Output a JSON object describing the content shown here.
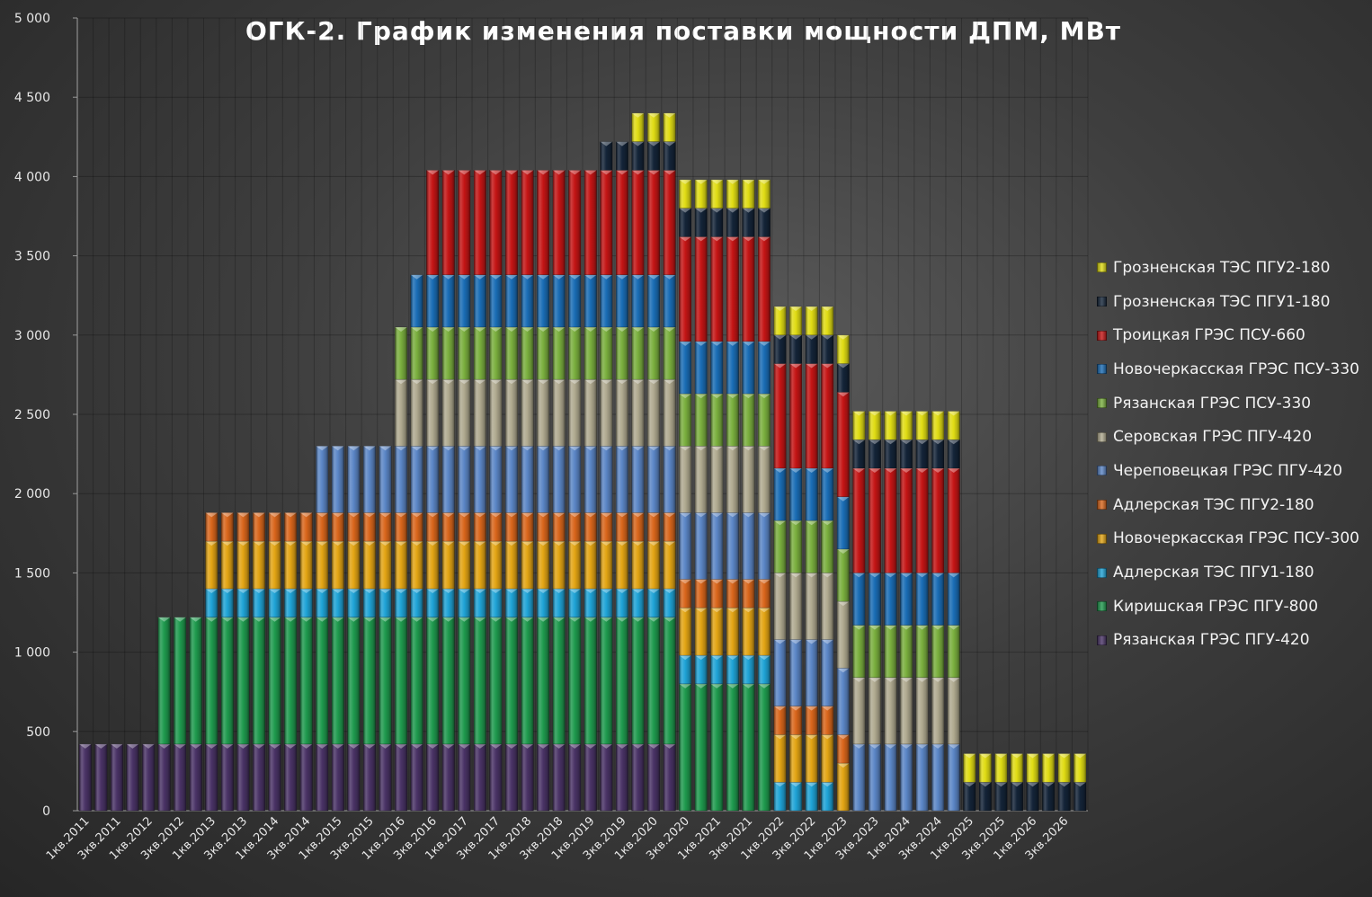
{
  "chart_data": {
    "type": "bar",
    "stacked": true,
    "title": "ОГК-2. График изменения поставки мощности ДПМ, МВт",
    "xlabel": "",
    "ylabel": "",
    "ylim": [
      0,
      5000
    ],
    "yticks": [
      "0",
      "500",
      "1 000",
      "1 500",
      "2 000",
      "2 500",
      "3 000",
      "3 500",
      "4 000",
      "4 500",
      "5 000"
    ],
    "grid": true,
    "legend_position": "right",
    "categories": [
      "1кв.2011",
      "2кв.2011",
      "3кв.2011",
      "4кв.2011",
      "1кв.2012",
      "2кв.2012",
      "3кв.2012",
      "4кв.2012",
      "1кв.2013",
      "2кв.2013",
      "3кв.2013",
      "4кв.2013",
      "1кв.2014",
      "2кв.2014",
      "3кв.2014",
      "4кв.2014",
      "1кв.2015",
      "2кв.2015",
      "3кв.2015",
      "4кв.2015",
      "1кв.2016",
      "2кв.2016",
      "3кв.2016",
      "4кв.2016",
      "1кв.2017",
      "2кв.2017",
      "3кв.2017",
      "4кв.2017",
      "1кв.2018",
      "2кв.2018",
      "3кв.2018",
      "4кв.2018",
      "1кв.2019",
      "2кв.2019",
      "3кв.2019",
      "4кв.2019",
      "1кв.2020",
      "2кв.2020",
      "3кв.2020",
      "4кв.2020",
      "1кв.2021",
      "2кв.2021",
      "3кв.2021",
      "4кв.2021",
      "1кв.2022",
      "2кв.2022",
      "3кв.2022",
      "4кв.2022",
      "1кв.2023",
      "2кв.2023",
      "3кв.2023",
      "4кв.2023",
      "1кв.2024",
      "2кв.2024",
      "3кв.2024",
      "4кв.2024",
      "1кв.2025",
      "2кв.2025",
      "3кв.2025",
      "4кв.2025",
      "1кв.2026",
      "2кв.2026",
      "3кв.2026",
      "4кв.2026"
    ],
    "xtick_labels": [
      "1кв.2011",
      "3кв.2011",
      "1кв.2012",
      "3кв.2012",
      "1кв.2013",
      "3кв.2013",
      "1кв.2014",
      "3кв.2014",
      "1кв.2015",
      "3кв.2015",
      "1кв.2016",
      "3кв.2016",
      "1кв.2017",
      "3кв.2017",
      "1кв.2018",
      "3кв.2018",
      "1кв.2019",
      "3кв.2019",
      "1кв.2020",
      "3кв.2020",
      "1кв.2021",
      "3кв.2021",
      "1кв.2022",
      "3кв.2022",
      "1кв.2023",
      "3кв.2023",
      "1кв.2024",
      "3кв.2024",
      "1кв.2025",
      "3кв.2025",
      "1кв.2026",
      "3кв.2026"
    ],
    "series": [
      {
        "name": "Рязанская ГРЭС ПГУ-420",
        "color": "#4a3366",
        "values": [
          420,
          420,
          420,
          420,
          420,
          420,
          420,
          420,
          420,
          420,
          420,
          420,
          420,
          420,
          420,
          420,
          420,
          420,
          420,
          420,
          420,
          420,
          420,
          420,
          420,
          420,
          420,
          420,
          420,
          420,
          420,
          420,
          420,
          420,
          420,
          420,
          420,
          420,
          0,
          0,
          0,
          0,
          0,
          0,
          0,
          0,
          0,
          0,
          0,
          0,
          0,
          0,
          0,
          0,
          0,
          0,
          0,
          0,
          0,
          0,
          0,
          0,
          0,
          0
        ]
      },
      {
        "name": "Киришская ГРЭС ПГУ-800",
        "color": "#1f9a4e",
        "values": [
          0,
          0,
          0,
          0,
          0,
          800,
          800,
          800,
          800,
          800,
          800,
          800,
          800,
          800,
          800,
          800,
          800,
          800,
          800,
          800,
          800,
          800,
          800,
          800,
          800,
          800,
          800,
          800,
          800,
          800,
          800,
          800,
          800,
          800,
          800,
          800,
          800,
          800,
          800,
          800,
          800,
          800,
          800,
          800,
          0,
          0,
          0,
          0,
          0,
          0,
          0,
          0,
          0,
          0,
          0,
          0,
          0,
          0,
          0,
          0,
          0,
          0,
          0,
          0
        ]
      },
      {
        "name": "Адлерская ТЭС ПГУ1-180",
        "color": "#1fa3d6",
        "values": [
          0,
          0,
          0,
          0,
          0,
          0,
          0,
          0,
          180,
          180,
          180,
          180,
          180,
          180,
          180,
          180,
          180,
          180,
          180,
          180,
          180,
          180,
          180,
          180,
          180,
          180,
          180,
          180,
          180,
          180,
          180,
          180,
          180,
          180,
          180,
          180,
          180,
          180,
          180,
          180,
          180,
          180,
          180,
          180,
          180,
          180,
          180,
          180,
          0,
          0,
          0,
          0,
          0,
          0,
          0,
          0,
          0,
          0,
          0,
          0,
          0,
          0,
          0,
          0
        ]
      },
      {
        "name": "Новочеркасская ГРЭС ПСУ-300",
        "color": "#e3a514",
        "values": [
          0,
          0,
          0,
          0,
          0,
          0,
          0,
          0,
          300,
          300,
          300,
          300,
          300,
          300,
          300,
          300,
          300,
          300,
          300,
          300,
          300,
          300,
          300,
          300,
          300,
          300,
          300,
          300,
          300,
          300,
          300,
          300,
          300,
          300,
          300,
          300,
          300,
          300,
          300,
          300,
          300,
          300,
          300,
          300,
          300,
          300,
          300,
          300,
          300,
          0,
          0,
          0,
          0,
          0,
          0,
          0,
          0,
          0,
          0,
          0,
          0,
          0,
          0,
          0
        ]
      },
      {
        "name": "Адлерская ТЭС ПГУ2-180",
        "color": "#d9661c",
        "values": [
          0,
          0,
          0,
          0,
          0,
          0,
          0,
          0,
          180,
          180,
          180,
          180,
          180,
          180,
          180,
          180,
          180,
          180,
          180,
          180,
          180,
          180,
          180,
          180,
          180,
          180,
          180,
          180,
          180,
          180,
          180,
          180,
          180,
          180,
          180,
          180,
          180,
          180,
          180,
          180,
          180,
          180,
          180,
          180,
          180,
          180,
          180,
          180,
          180,
          0,
          0,
          0,
          0,
          0,
          0,
          0,
          0,
          0,
          0,
          0,
          0,
          0,
          0,
          0
        ]
      },
      {
        "name": "Череповецкая ГРЭС ПГУ-420",
        "color": "#5b86c6",
        "values": [
          0,
          0,
          0,
          0,
          0,
          0,
          0,
          0,
          0,
          0,
          0,
          0,
          0,
          0,
          0,
          420,
          420,
          420,
          420,
          420,
          420,
          420,
          420,
          420,
          420,
          420,
          420,
          420,
          420,
          420,
          420,
          420,
          420,
          420,
          420,
          420,
          420,
          420,
          420,
          420,
          420,
          420,
          420,
          420,
          420,
          420,
          420,
          420,
          420,
          420,
          420,
          420,
          420,
          420,
          420,
          420,
          0,
          0,
          0,
          0,
          0,
          0,
          0,
          0
        ]
      },
      {
        "name": "Серовская ГРЭС ПГУ-420",
        "color": "#b0aa90",
        "values": [
          0,
          0,
          0,
          0,
          0,
          0,
          0,
          0,
          0,
          0,
          0,
          0,
          0,
          0,
          0,
          0,
          0,
          0,
          0,
          0,
          420,
          420,
          420,
          420,
          420,
          420,
          420,
          420,
          420,
          420,
          420,
          420,
          420,
          420,
          420,
          420,
          420,
          420,
          420,
          420,
          420,
          420,
          420,
          420,
          420,
          420,
          420,
          420,
          420,
          420,
          420,
          420,
          420,
          420,
          420,
          420,
          0,
          0,
          0,
          0,
          0,
          0,
          0,
          0
        ]
      },
      {
        "name": "Рязанская ГРЭС ПСУ-330",
        "color": "#7aaf3e",
        "values": [
          0,
          0,
          0,
          0,
          0,
          0,
          0,
          0,
          0,
          0,
          0,
          0,
          0,
          0,
          0,
          0,
          0,
          0,
          0,
          0,
          330,
          330,
          330,
          330,
          330,
          330,
          330,
          330,
          330,
          330,
          330,
          330,
          330,
          330,
          330,
          330,
          330,
          330,
          330,
          330,
          330,
          330,
          330,
          330,
          330,
          330,
          330,
          330,
          330,
          330,
          330,
          330,
          330,
          330,
          330,
          330,
          0,
          0,
          0,
          0,
          0,
          0,
          0,
          0
        ]
      },
      {
        "name": "Новочеркасская ГРЭС ПСУ-330",
        "color": "#1a6db5",
        "values": [
          0,
          0,
          0,
          0,
          0,
          0,
          0,
          0,
          0,
          0,
          0,
          0,
          0,
          0,
          0,
          0,
          0,
          0,
          0,
          0,
          0,
          330,
          330,
          330,
          330,
          330,
          330,
          330,
          330,
          330,
          330,
          330,
          330,
          330,
          330,
          330,
          330,
          330,
          330,
          330,
          330,
          330,
          330,
          330,
          330,
          330,
          330,
          330,
          330,
          330,
          330,
          330,
          330,
          330,
          330,
          330,
          0,
          0,
          0,
          0,
          0,
          0,
          0,
          0
        ]
      },
      {
        "name": "Троицкая ГРЭС ПСУ-660",
        "color": "#c41515",
        "values": [
          0,
          0,
          0,
          0,
          0,
          0,
          0,
          0,
          0,
          0,
          0,
          0,
          0,
          0,
          0,
          0,
          0,
          0,
          0,
          0,
          0,
          0,
          660,
          660,
          660,
          660,
          660,
          660,
          660,
          660,
          660,
          660,
          660,
          660,
          660,
          660,
          660,
          660,
          660,
          660,
          660,
          660,
          660,
          660,
          660,
          660,
          660,
          660,
          660,
          660,
          660,
          660,
          660,
          660,
          660,
          660,
          0,
          0,
          0,
          0,
          0,
          0,
          0,
          0
        ]
      },
      {
        "name": "Грозненская ТЭС ПГУ1-180",
        "color": "#142438",
        "values": [
          0,
          0,
          0,
          0,
          0,
          0,
          0,
          0,
          0,
          0,
          0,
          0,
          0,
          0,
          0,
          0,
          0,
          0,
          0,
          0,
          0,
          0,
          0,
          0,
          0,
          0,
          0,
          0,
          0,
          0,
          0,
          0,
          0,
          180,
          180,
          180,
          180,
          180,
          180,
          180,
          180,
          180,
          180,
          180,
          180,
          180,
          180,
          180,
          180,
          180,
          180,
          180,
          180,
          180,
          180,
          180,
          180,
          180,
          180,
          180,
          180,
          180,
          180,
          180
        ]
      },
      {
        "name": "Грозненская ТЭС ПГУ2-180",
        "color": "#e0dc14",
        "values": [
          0,
          0,
          0,
          0,
          0,
          0,
          0,
          0,
          0,
          0,
          0,
          0,
          0,
          0,
          0,
          0,
          0,
          0,
          0,
          0,
          0,
          0,
          0,
          0,
          0,
          0,
          0,
          0,
          0,
          0,
          0,
          0,
          0,
          0,
          0,
          180,
          180,
          180,
          180,
          180,
          180,
          180,
          180,
          180,
          180,
          180,
          180,
          180,
          180,
          180,
          180,
          180,
          180,
          180,
          180,
          180,
          180,
          180,
          180,
          180,
          180,
          180,
          180,
          180
        ]
      }
    ]
  }
}
